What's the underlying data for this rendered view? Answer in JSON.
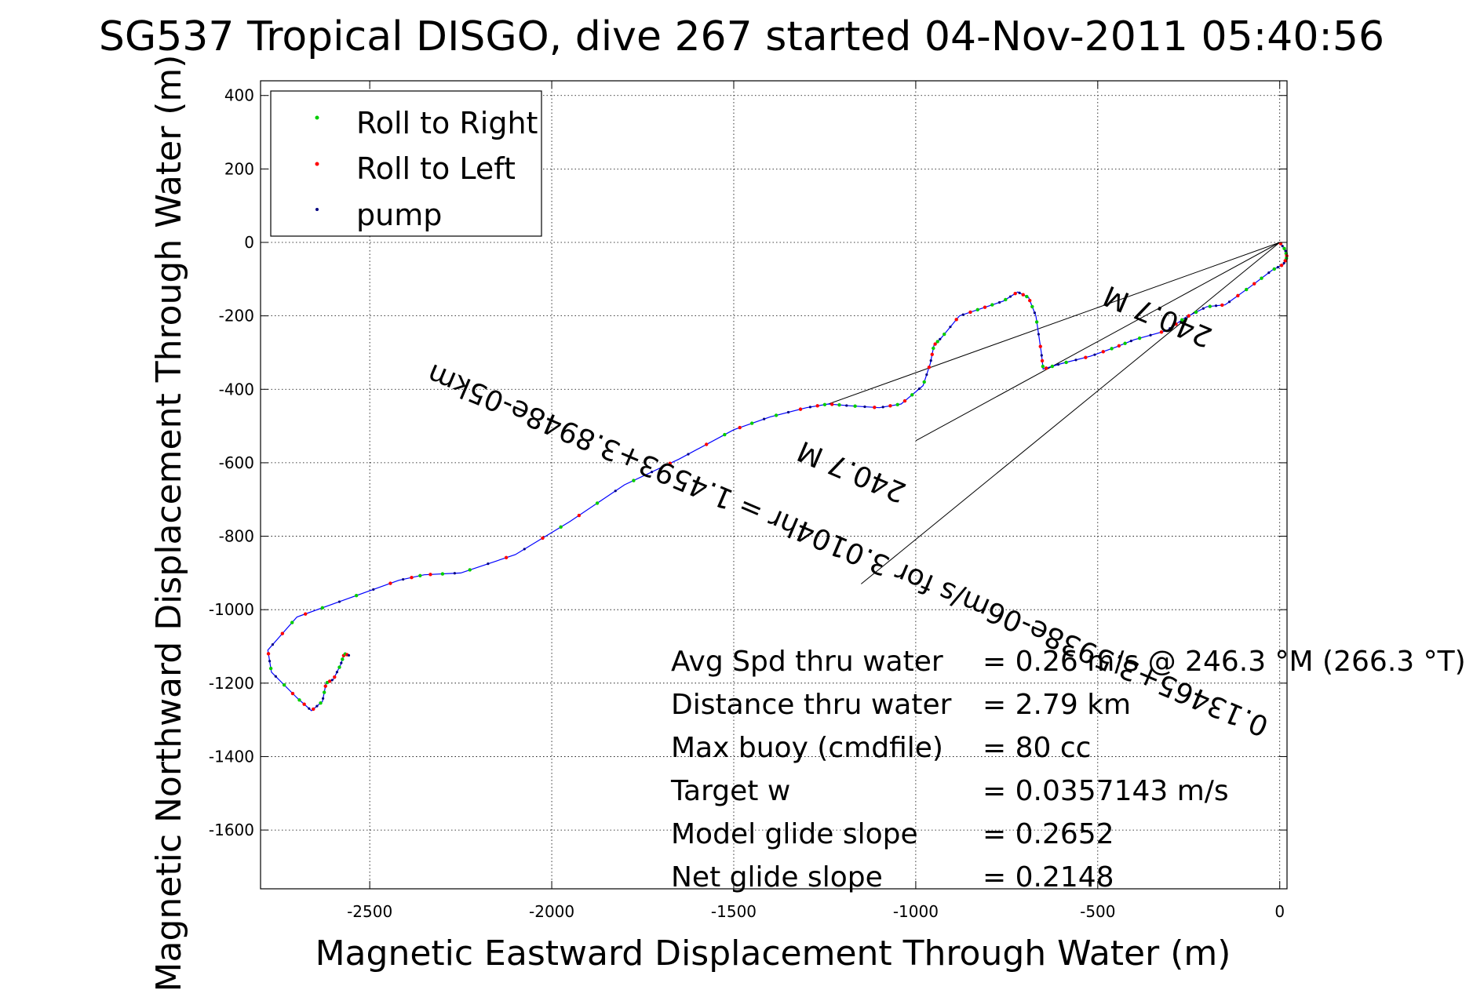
{
  "chart_data": {
    "type": "line",
    "title": "SG537 Tropical DISGO, dive 267 started 04-Nov-2011 05:40:56",
    "xlabel": "Magnetic Eastward Displacement Through Water (m)",
    "ylabel": "Magnetic Northward Displacement Through Water (m)",
    "xlim": [
      -2800,
      20
    ],
    "ylim": [
      -1760,
      440
    ],
    "xticks": [
      -2500,
      -2000,
      -1500,
      -1000,
      -500,
      0
    ],
    "yticks": [
      400,
      200,
      0,
      -200,
      -400,
      -600,
      -800,
      -1000,
      -1200,
      -1400,
      -1600
    ],
    "xtick_labels": [
      "-2500",
      "-2000",
      "-1500",
      "-1000",
      "-500",
      "0"
    ],
    "ytick_labels": [
      "400",
      "200",
      "0",
      "-200",
      "-400",
      "-600",
      "-800",
      "-1000",
      "-1200",
      "-1400",
      "-1600"
    ],
    "grid": true,
    "legend_position": "top-left",
    "legend": [
      {
        "label": "Roll to Right",
        "color": "#00cc00"
      },
      {
        "label": "Roll to Left",
        "color": "#ff0000"
      },
      {
        "label": "pump",
        "color": "#000080"
      }
    ],
    "track_color": "#0000ff",
    "track": [
      [
        0,
        0
      ],
      [
        15,
        -20
      ],
      [
        20,
        -40
      ],
      [
        10,
        -60
      ],
      [
        -20,
        -75
      ],
      [
        -80,
        -120
      ],
      [
        -150,
        -170
      ],
      [
        -200,
        -175
      ],
      [
        -260,
        -205
      ],
      [
        -310,
        -240
      ],
      [
        -400,
        -265
      ],
      [
        -450,
        -285
      ],
      [
        -520,
        -310
      ],
      [
        -600,
        -330
      ],
      [
        -650,
        -345
      ],
      [
        -655,
        -300
      ],
      [
        -670,
        -200
      ],
      [
        -690,
        -150
      ],
      [
        -720,
        -135
      ],
      [
        -760,
        -160
      ],
      [
        -820,
        -180
      ],
      [
        -880,
        -200
      ],
      [
        -930,
        -260
      ],
      [
        -950,
        -280
      ],
      [
        -960,
        -330
      ],
      [
        -980,
        -390
      ],
      [
        -1040,
        -440
      ],
      [
        -1100,
        -450
      ],
      [
        -1180,
        -445
      ],
      [
        -1240,
        -440
      ],
      [
        -1300,
        -450
      ],
      [
        -1400,
        -475
      ],
      [
        -1500,
        -510
      ],
      [
        -1650,
        -590
      ],
      [
        -1800,
        -660
      ],
      [
        -1950,
        -760
      ],
      [
        -2100,
        -850
      ],
      [
        -2250,
        -900
      ],
      [
        -2350,
        -905
      ],
      [
        -2420,
        -920
      ],
      [
        -2560,
        -970
      ],
      [
        -2700,
        -1020
      ],
      [
        -2780,
        -1110
      ],
      [
        -2770,
        -1170
      ],
      [
        -2700,
        -1240
      ],
      [
        -2660,
        -1275
      ],
      [
        -2630,
        -1250
      ],
      [
        -2620,
        -1200
      ],
      [
        -2600,
        -1190
      ],
      [
        -2580,
        -1150
      ],
      [
        -2570,
        -1120
      ],
      [
        -2555,
        -1125
      ]
    ],
    "reference_lines": [
      {
        "from": [
          0,
          0
        ],
        "to": [
          -1240,
          -440
        ]
      },
      {
        "from": [
          0,
          0
        ],
        "to": [
          -1150,
          -930
        ]
      },
      {
        "from": [
          0,
          0
        ],
        "to": [
          -1000,
          -540
        ]
      }
    ],
    "rotated_annotations": [
      "240.7 M",
      "0.13465+3.5938e-06m/s for 3.0104hr = 1.4593+3.8948e-05km",
      "240.7 M"
    ],
    "stats": [
      {
        "label": "Avg Spd thru water",
        "value": "=  0.26 m/s @ 246.3 °M (266.3 °T)"
      },
      {
        "label": "Distance thru water",
        "value": "=  2.79 km"
      },
      {
        "label": "Max buoy (cmdfile)",
        "value": "= 80 cc"
      },
      {
        "label": "Target w",
        "value": "= 0.0357143 m/s"
      },
      {
        "label": "Model glide slope",
        "value": "= 0.2652"
      },
      {
        "label": "Net glide slope",
        "value": "= 0.2148"
      }
    ]
  }
}
